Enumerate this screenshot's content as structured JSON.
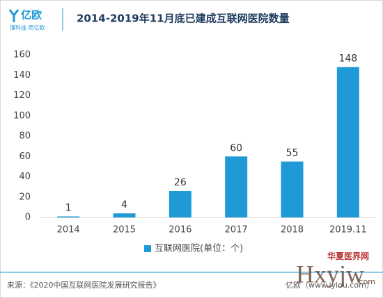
{
  "logo": {
    "name": "亿欧",
    "slogan": "懂科技 用亿欧"
  },
  "chart_data": {
    "type": "bar",
    "title": "2014-2019年11月底已建成互联网医院数量",
    "categories": [
      "2014",
      "2015",
      "2016",
      "2017",
      "2018",
      "2019.11"
    ],
    "series": [
      {
        "name": "互联网医院(单位：个)",
        "color": "#1f9ad6",
        "values": [
          1,
          4,
          26,
          60,
          55,
          148
        ]
      }
    ],
    "ylim": [
      0,
      160
    ],
    "yticks": [
      0,
      20,
      40,
      60,
      80,
      100,
      120,
      140,
      160
    ],
    "grid": false,
    "legend": "bottom"
  },
  "footer": {
    "source": "来源：《2020中国互联网医院发展研究报告》",
    "credit": "亿欧（www.iyiou.com）"
  },
  "watermark": {
    "cn": "华夏医界网",
    "en": "Hxyjw",
    "domain": ".com"
  }
}
